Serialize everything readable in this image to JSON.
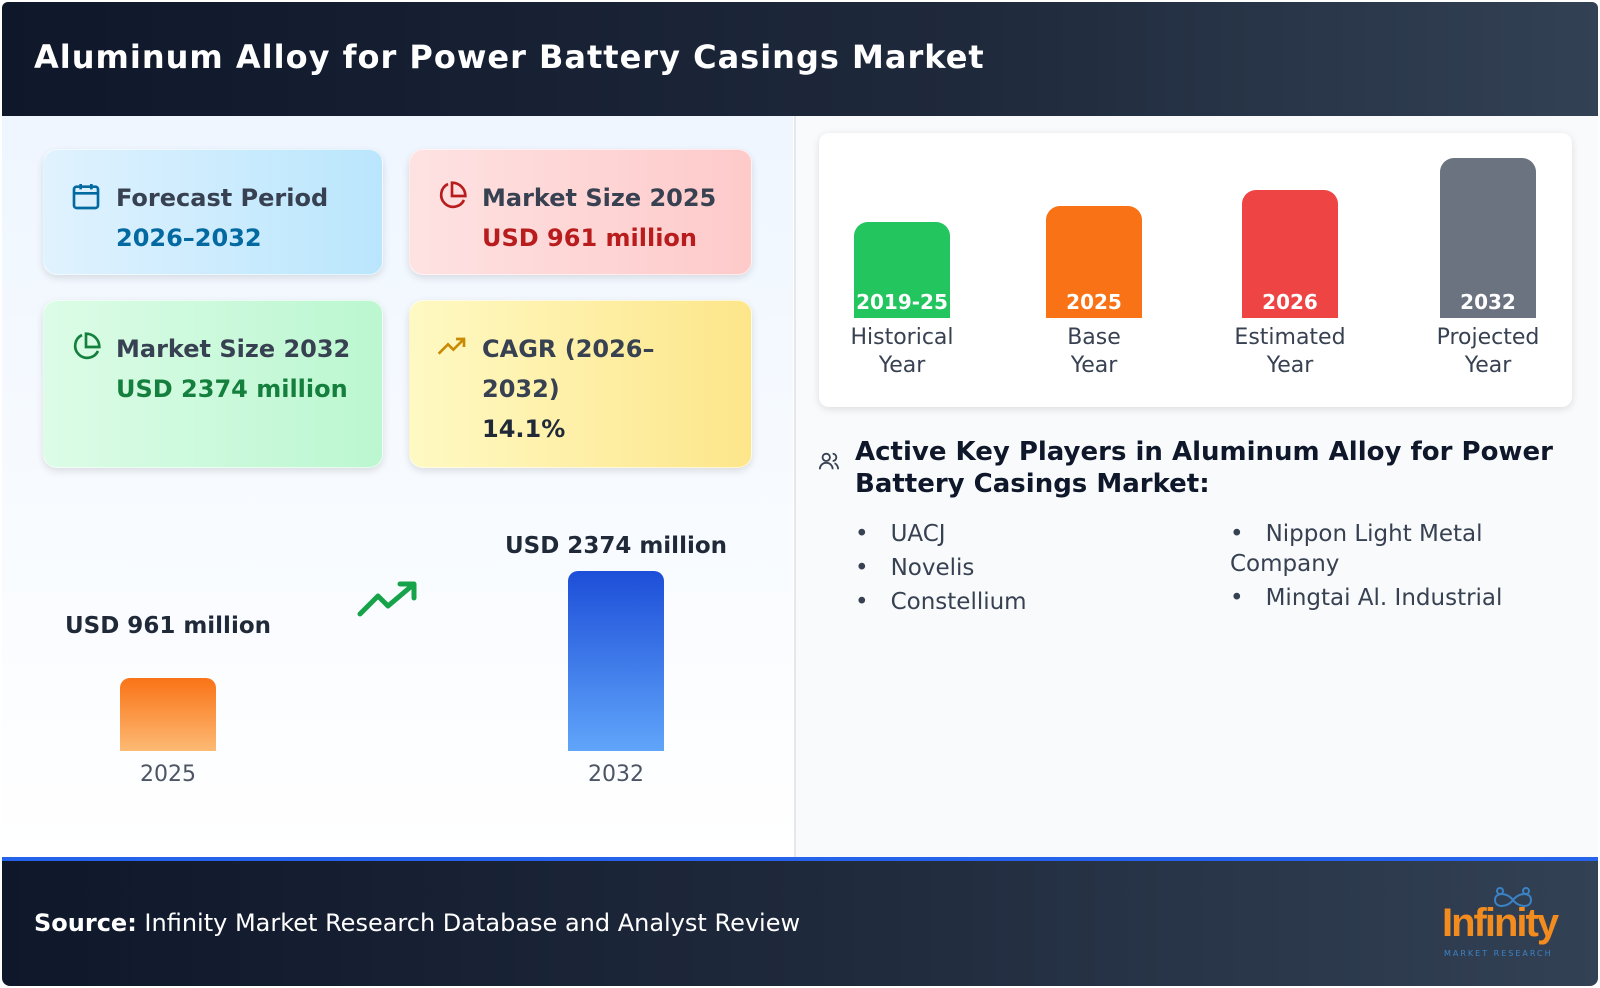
{
  "header": {
    "title": "Aluminum Alloy for Power Battery Casings Market"
  },
  "cards": [
    {
      "label": "Forecast Period",
      "value": "2026–2032",
      "icon": "calendar-icon",
      "color": "#0369a1"
    },
    {
      "label": "Market Size 2025",
      "value": "USD 961 million",
      "icon": "pie-chart-icon",
      "color": "#b91c1c"
    },
    {
      "label": "Market Size 2032",
      "value": "USD 2374 million",
      "icon": "pie-chart-icon",
      "color": "#15803d"
    },
    {
      "label": "CAGR (2026–2032)",
      "value": "14.1%",
      "icon": "trending-up-icon",
      "color": "#1f2937"
    }
  ],
  "chart_data": {
    "type": "bar",
    "categories": [
      "2025",
      "2032"
    ],
    "values": [
      961,
      2374
    ],
    "unit": "USD million",
    "labels": [
      "USD 961 million",
      "USD 2374 million"
    ]
  },
  "timeline": [
    {
      "period": "2019-25",
      "caption1": "Historical",
      "caption2": "Year",
      "color": "#22c55e"
    },
    {
      "period": "2025",
      "caption1": "Base",
      "caption2": "Year",
      "color": "#f97316"
    },
    {
      "period": "2026",
      "caption1": "Estimated",
      "caption2": "Year",
      "color": "#ef4444"
    },
    {
      "period": "2032",
      "caption1": "Projected",
      "caption2": "Year",
      "color": "#6b7280"
    }
  ],
  "players": {
    "heading": "Active Key Players in Aluminum Alloy for Power Battery Casings Market:",
    "col1": [
      "UACJ",
      "Novelis",
      "Constellium"
    ],
    "col2": [
      "Nippon Light Metal Company",
      "Mingtai Al. Industrial"
    ]
  },
  "footer": {
    "source_label": "Source:",
    "source_text": " Infinity Market Research Database and Analyst Review",
    "logo_main": "Infinity",
    "logo_sub": "MARKET RESEARCH"
  }
}
